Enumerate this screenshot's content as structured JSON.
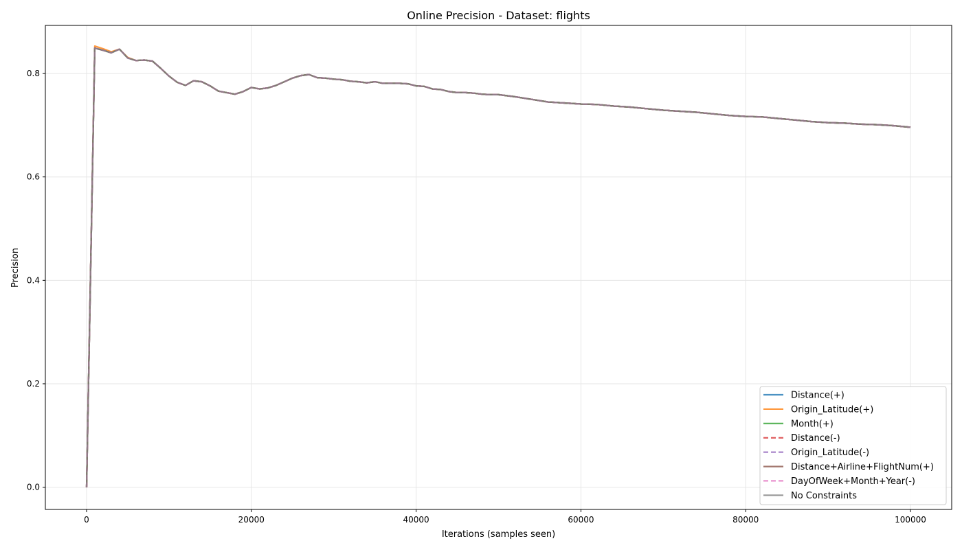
{
  "chart_data": {
    "type": "line",
    "title": "Online Precision - Dataset: flights",
    "xlabel": "Iterations (samples seen)",
    "ylabel": "Precision",
    "xlim": [
      -5000,
      105000
    ],
    "ylim": [
      -0.043,
      0.893
    ],
    "xticks": [
      0,
      20000,
      40000,
      60000,
      80000,
      100000
    ],
    "xtick_labels": [
      "0",
      "20000",
      "40000",
      "60000",
      "80000",
      "100000"
    ],
    "yticks": [
      0.0,
      0.2,
      0.4,
      0.6,
      0.8
    ],
    "ytick_labels": [
      "0.0",
      "0.2",
      "0.4",
      "0.6",
      "0.8"
    ],
    "grid": true,
    "legend_position": "bottom-right",
    "x": [
      0,
      1000,
      2000,
      3000,
      4000,
      5000,
      6000,
      7000,
      8000,
      9000,
      10000,
      11000,
      12000,
      13000,
      14000,
      15000,
      16000,
      17000,
      18000,
      19000,
      20000,
      21000,
      22000,
      23000,
      24000,
      25000,
      26000,
      27000,
      28000,
      29000,
      30000,
      31000,
      32000,
      33000,
      34000,
      35000,
      36000,
      37000,
      38000,
      39000,
      40000,
      41000,
      42000,
      43000,
      44000,
      45000,
      46000,
      47000,
      48000,
      49000,
      50000,
      52000,
      54000,
      56000,
      58000,
      60000,
      62000,
      64000,
      66000,
      68000,
      70000,
      72000,
      74000,
      76000,
      78000,
      80000,
      82000,
      84000,
      86000,
      88000,
      90000,
      92000,
      94000,
      96000,
      98000,
      100000
    ],
    "series": [
      {
        "name": "Distance(+)",
        "color": "#1f77b4",
        "dash": "solid",
        "values": [
          0.0,
          0.849,
          0.845,
          0.84,
          0.847,
          0.83,
          0.825,
          0.826,
          0.824,
          0.81,
          0.795,
          0.783,
          0.777,
          0.786,
          0.784,
          0.776,
          0.766,
          0.763,
          0.76,
          0.765,
          0.773,
          0.77,
          0.772,
          0.777,
          0.784,
          0.791,
          0.796,
          0.798,
          0.792,
          0.791,
          0.789,
          0.788,
          0.785,
          0.784,
          0.782,
          0.784,
          0.781,
          0.781,
          0.781,
          0.78,
          0.776,
          0.775,
          0.77,
          0.769,
          0.765,
          0.763,
          0.763,
          0.762,
          0.76,
          0.759,
          0.759,
          0.755,
          0.75,
          0.745,
          0.743,
          0.741,
          0.74,
          0.737,
          0.735,
          0.732,
          0.729,
          0.727,
          0.725,
          0.722,
          0.719,
          0.717,
          0.716,
          0.713,
          0.71,
          0.707,
          0.705,
          0.704,
          0.702,
          0.701,
          0.699,
          0.696
        ]
      },
      {
        "name": "Origin_Latitude(+)",
        "color": "#ff7f0e",
        "dash": "solid",
        "values": [
          0.0,
          0.853,
          0.848,
          0.842,
          0.847,
          0.831,
          0.825,
          0.826,
          0.824,
          0.81,
          0.795,
          0.783,
          0.777,
          0.786,
          0.784,
          0.776,
          0.766,
          0.763,
          0.76,
          0.765,
          0.773,
          0.77,
          0.772,
          0.777,
          0.784,
          0.791,
          0.796,
          0.798,
          0.792,
          0.791,
          0.789,
          0.788,
          0.785,
          0.784,
          0.782,
          0.784,
          0.781,
          0.781,
          0.781,
          0.78,
          0.776,
          0.775,
          0.77,
          0.769,
          0.765,
          0.763,
          0.763,
          0.762,
          0.76,
          0.759,
          0.759,
          0.755,
          0.75,
          0.745,
          0.743,
          0.741,
          0.74,
          0.737,
          0.735,
          0.732,
          0.729,
          0.727,
          0.725,
          0.722,
          0.719,
          0.717,
          0.716,
          0.713,
          0.71,
          0.707,
          0.705,
          0.704,
          0.702,
          0.701,
          0.699,
          0.696
        ]
      },
      {
        "name": "Month(+)",
        "color": "#2ca02c",
        "dash": "solid",
        "values": [
          0.0,
          0.849,
          0.845,
          0.84,
          0.847,
          0.83,
          0.825,
          0.826,
          0.824,
          0.81,
          0.795,
          0.783,
          0.777,
          0.786,
          0.784,
          0.776,
          0.766,
          0.763,
          0.76,
          0.765,
          0.773,
          0.77,
          0.772,
          0.777,
          0.784,
          0.791,
          0.796,
          0.798,
          0.792,
          0.791,
          0.789,
          0.788,
          0.785,
          0.784,
          0.782,
          0.784,
          0.781,
          0.781,
          0.781,
          0.78,
          0.776,
          0.775,
          0.77,
          0.769,
          0.765,
          0.763,
          0.763,
          0.762,
          0.76,
          0.759,
          0.759,
          0.755,
          0.75,
          0.745,
          0.743,
          0.741,
          0.74,
          0.737,
          0.735,
          0.732,
          0.729,
          0.727,
          0.725,
          0.722,
          0.719,
          0.717,
          0.716,
          0.713,
          0.71,
          0.707,
          0.705,
          0.704,
          0.702,
          0.701,
          0.699,
          0.696
        ]
      },
      {
        "name": "Distance(-)",
        "color": "#d62728",
        "dash": "dashed",
        "values": [
          0.0,
          0.849,
          0.845,
          0.84,
          0.847,
          0.83,
          0.825,
          0.826,
          0.824,
          0.81,
          0.795,
          0.783,
          0.777,
          0.786,
          0.784,
          0.776,
          0.766,
          0.763,
          0.76,
          0.765,
          0.773,
          0.77,
          0.772,
          0.777,
          0.784,
          0.791,
          0.796,
          0.798,
          0.792,
          0.791,
          0.789,
          0.788,
          0.785,
          0.784,
          0.782,
          0.784,
          0.781,
          0.781,
          0.781,
          0.78,
          0.776,
          0.775,
          0.77,
          0.769,
          0.765,
          0.763,
          0.763,
          0.762,
          0.76,
          0.759,
          0.759,
          0.755,
          0.75,
          0.745,
          0.743,
          0.741,
          0.74,
          0.737,
          0.735,
          0.732,
          0.729,
          0.727,
          0.725,
          0.722,
          0.719,
          0.717,
          0.716,
          0.713,
          0.71,
          0.707,
          0.705,
          0.704,
          0.702,
          0.701,
          0.699,
          0.696
        ]
      },
      {
        "name": "Origin_Latitude(-)",
        "color": "#9467bd",
        "dash": "dashed",
        "values": [
          0.0,
          0.849,
          0.845,
          0.84,
          0.847,
          0.83,
          0.825,
          0.826,
          0.824,
          0.81,
          0.795,
          0.783,
          0.777,
          0.786,
          0.784,
          0.776,
          0.766,
          0.763,
          0.76,
          0.765,
          0.773,
          0.77,
          0.772,
          0.777,
          0.784,
          0.791,
          0.796,
          0.798,
          0.792,
          0.791,
          0.789,
          0.788,
          0.785,
          0.784,
          0.782,
          0.784,
          0.781,
          0.781,
          0.781,
          0.78,
          0.776,
          0.775,
          0.77,
          0.769,
          0.765,
          0.763,
          0.763,
          0.762,
          0.76,
          0.759,
          0.759,
          0.755,
          0.75,
          0.745,
          0.743,
          0.741,
          0.74,
          0.737,
          0.735,
          0.732,
          0.729,
          0.727,
          0.725,
          0.722,
          0.719,
          0.717,
          0.716,
          0.713,
          0.71,
          0.707,
          0.705,
          0.704,
          0.702,
          0.701,
          0.699,
          0.696
        ]
      },
      {
        "name": "Distance+Airline+FlightNum(+)",
        "color": "#8c564b",
        "dash": "solid",
        "values": [
          0.0,
          0.849,
          0.845,
          0.84,
          0.847,
          0.83,
          0.825,
          0.826,
          0.824,
          0.81,
          0.795,
          0.783,
          0.777,
          0.786,
          0.784,
          0.776,
          0.766,
          0.763,
          0.76,
          0.765,
          0.773,
          0.77,
          0.772,
          0.777,
          0.784,
          0.791,
          0.796,
          0.798,
          0.792,
          0.791,
          0.789,
          0.788,
          0.785,
          0.784,
          0.782,
          0.784,
          0.781,
          0.781,
          0.781,
          0.78,
          0.776,
          0.775,
          0.77,
          0.769,
          0.765,
          0.763,
          0.763,
          0.762,
          0.76,
          0.759,
          0.759,
          0.755,
          0.75,
          0.745,
          0.743,
          0.741,
          0.74,
          0.737,
          0.735,
          0.732,
          0.729,
          0.727,
          0.725,
          0.722,
          0.719,
          0.717,
          0.716,
          0.713,
          0.71,
          0.707,
          0.705,
          0.704,
          0.702,
          0.701,
          0.699,
          0.696
        ]
      },
      {
        "name": "DayOfWeek+Month+Year(-)",
        "color": "#e377c2",
        "dash": "dashed",
        "values": [
          0.0,
          0.849,
          0.845,
          0.84,
          0.847,
          0.83,
          0.825,
          0.826,
          0.824,
          0.81,
          0.795,
          0.783,
          0.777,
          0.786,
          0.784,
          0.776,
          0.766,
          0.763,
          0.76,
          0.765,
          0.773,
          0.77,
          0.772,
          0.777,
          0.784,
          0.791,
          0.796,
          0.798,
          0.792,
          0.791,
          0.789,
          0.788,
          0.785,
          0.784,
          0.782,
          0.784,
          0.781,
          0.781,
          0.781,
          0.78,
          0.776,
          0.775,
          0.77,
          0.769,
          0.765,
          0.763,
          0.763,
          0.762,
          0.76,
          0.759,
          0.759,
          0.755,
          0.75,
          0.745,
          0.743,
          0.741,
          0.74,
          0.737,
          0.735,
          0.732,
          0.729,
          0.727,
          0.725,
          0.722,
          0.719,
          0.717,
          0.716,
          0.713,
          0.71,
          0.707,
          0.705,
          0.704,
          0.702,
          0.701,
          0.699,
          0.696
        ]
      },
      {
        "name": "No Constraints",
        "color": "#7f7f7f",
        "dash": "solid",
        "values": [
          0.0,
          0.849,
          0.845,
          0.84,
          0.847,
          0.83,
          0.825,
          0.826,
          0.824,
          0.81,
          0.795,
          0.783,
          0.777,
          0.786,
          0.784,
          0.776,
          0.766,
          0.763,
          0.76,
          0.765,
          0.773,
          0.77,
          0.772,
          0.777,
          0.784,
          0.791,
          0.796,
          0.798,
          0.792,
          0.791,
          0.789,
          0.788,
          0.785,
          0.784,
          0.782,
          0.784,
          0.781,
          0.781,
          0.781,
          0.78,
          0.776,
          0.775,
          0.77,
          0.769,
          0.765,
          0.763,
          0.763,
          0.762,
          0.76,
          0.759,
          0.759,
          0.755,
          0.75,
          0.745,
          0.743,
          0.741,
          0.74,
          0.737,
          0.735,
          0.732,
          0.729,
          0.727,
          0.725,
          0.722,
          0.719,
          0.717,
          0.716,
          0.713,
          0.71,
          0.707,
          0.705,
          0.704,
          0.702,
          0.701,
          0.699,
          0.696
        ]
      }
    ]
  }
}
